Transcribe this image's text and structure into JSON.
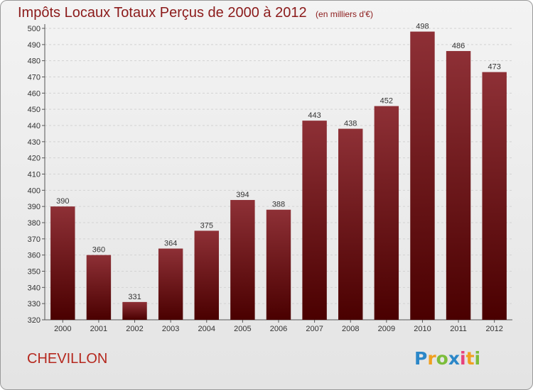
{
  "header": {
    "title": "Impôts Locaux Totaux Perçus de 2000 à 2012",
    "unit": "(en milliers d'€)"
  },
  "commune": "CHEVILLON",
  "logo": {
    "letters": [
      "P",
      "r",
      "o",
      "x",
      "i",
      "t",
      "i"
    ],
    "colors": [
      "#2b87c8",
      "#f0a020",
      "#7cbd3a",
      "#2b87c8",
      "#e8427c",
      "#f0a020",
      "#7cbd3a"
    ]
  },
  "chart_data": {
    "type": "bar",
    "title": "Impôts Locaux Totaux Perçus de 2000 à 2012",
    "subtitle": "(en milliers d'€)",
    "xlabel": "",
    "ylabel": "",
    "categories": [
      "2000",
      "2001",
      "2002",
      "2003",
      "2004",
      "2005",
      "2006",
      "2007",
      "2008",
      "2009",
      "2010",
      "2011",
      "2012"
    ],
    "values": [
      390,
      360,
      331,
      364,
      375,
      394,
      388,
      443,
      438,
      452,
      498,
      486,
      473
    ],
    "ylim": [
      320,
      500
    ],
    "yticks": [
      320,
      330,
      340,
      350,
      360,
      370,
      380,
      390,
      400,
      410,
      420,
      430,
      440,
      450,
      460,
      470,
      480,
      490,
      500
    ],
    "grid": true,
    "bar_color": "#7a1a1a"
  }
}
